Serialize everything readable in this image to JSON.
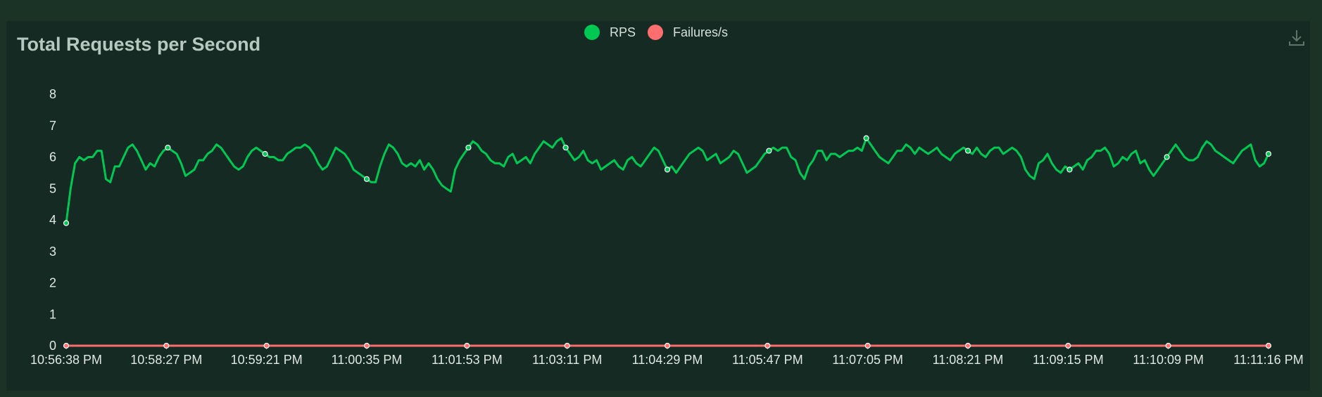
{
  "chart_data": {
    "type": "line",
    "title": "Total Requests per Second",
    "legend": {
      "placement": "top-center",
      "entries": [
        "RPS",
        "Failures/s"
      ]
    },
    "xlabel": "",
    "ylabel": "",
    "ylim": [
      0,
      8
    ],
    "yticks": [
      "0",
      "1",
      "2",
      "3",
      "4",
      "5",
      "6",
      "7",
      "8"
    ],
    "xticks": [
      "10:56:38 PM",
      "10:58:27 PM",
      "10:59:21 PM",
      "11:00:35 PM",
      "11:01:53 PM",
      "11:03:11 PM",
      "11:04:29 PM",
      "11:05:47 PM",
      "11:07:05 PM",
      "11:08:21 PM",
      "11:09:15 PM",
      "11:10:09 PM",
      "11:11:16 PM"
    ],
    "grid": false,
    "series": [
      {
        "name": "RPS",
        "color": "#00c853",
        "values": [
          3.9,
          5.0,
          5.8,
          6.0,
          5.9,
          6.0,
          6.0,
          6.2,
          6.2,
          5.3,
          5.2,
          5.7,
          5.7,
          6.0,
          6.3,
          6.4,
          6.2,
          5.9,
          5.6,
          5.8,
          5.7,
          6.0,
          6.2,
          6.3,
          6.2,
          6.1,
          5.8,
          5.4,
          5.5,
          5.6,
          5.9,
          5.9,
          6.1,
          6.2,
          6.4,
          6.3,
          6.1,
          5.9,
          5.7,
          5.6,
          5.7,
          6.0,
          6.2,
          6.3,
          6.2,
          6.1,
          6.0,
          6.0,
          5.9,
          5.9,
          6.1,
          6.2,
          6.3,
          6.3,
          6.4,
          6.3,
          6.1,
          5.8,
          5.6,
          5.7,
          6.0,
          6.3,
          6.2,
          6.1,
          5.9,
          5.6,
          5.5,
          5.4,
          5.3,
          5.2,
          5.2,
          5.7,
          6.1,
          6.4,
          6.3,
          6.1,
          5.8,
          5.7,
          5.8,
          5.7,
          5.9,
          5.6,
          5.8,
          5.6,
          5.3,
          5.1,
          5.0,
          4.9,
          5.6,
          5.9,
          6.1,
          6.3,
          6.5,
          6.4,
          6.2,
          6.1,
          5.9,
          5.8,
          5.8,
          5.7,
          6.0,
          6.1,
          5.8,
          5.9,
          6.0,
          5.8,
          6.1,
          6.3,
          6.5,
          6.4,
          6.3,
          6.5,
          6.6,
          6.3,
          6.1,
          5.9,
          6.0,
          6.2,
          5.9,
          5.8,
          5.9,
          5.6,
          5.7,
          5.8,
          5.9,
          5.7,
          5.6,
          5.9,
          6.0,
          5.8,
          5.7,
          5.9,
          6.1,
          6.3,
          6.2,
          5.9,
          5.6,
          5.7,
          5.5,
          5.7,
          5.9,
          6.1,
          6.2,
          6.3,
          6.2,
          5.9,
          6.0,
          6.1,
          5.8,
          5.9,
          6.0,
          6.2,
          6.1,
          5.8,
          5.5,
          5.6,
          5.7,
          5.9,
          6.1,
          6.2,
          6.3,
          6.2,
          6.3,
          6.3,
          6.0,
          5.9,
          5.5,
          5.3,
          5.7,
          5.9,
          6.2,
          6.2,
          5.9,
          6.1,
          6.1,
          6.0,
          6.1,
          6.2,
          6.2,
          6.3,
          6.2,
          6.6,
          6.4,
          6.2,
          6.0,
          5.9,
          5.8,
          6.0,
          6.2,
          6.2,
          6.4,
          6.3,
          6.1,
          6.3,
          6.2,
          6.1,
          6.2,
          6.3,
          6.1,
          6.0,
          5.9,
          6.1,
          6.2,
          6.3,
          6.2,
          6.1,
          6.3,
          6.1,
          6.0,
          6.2,
          6.3,
          6.3,
          6.1,
          6.2,
          6.3,
          6.2,
          6.0,
          5.6,
          5.4,
          5.3,
          5.8,
          5.9,
          6.1,
          5.8,
          5.6,
          5.5,
          5.7,
          5.6,
          5.7,
          5.8,
          5.6,
          5.9,
          6.0,
          6.2,
          6.2,
          6.3,
          6.1,
          5.7,
          5.8,
          6.0,
          5.9,
          6.1,
          6.2,
          5.8,
          5.9,
          5.6,
          5.4,
          5.6,
          5.8,
          6.0,
          6.2,
          6.4,
          6.2,
          6.0,
          5.9,
          5.9,
          6.0,
          6.3,
          6.5,
          6.4,
          6.2,
          6.1,
          6.0,
          5.9,
          5.8,
          6.0,
          6.2,
          6.3,
          6.4,
          5.9,
          5.7,
          5.8,
          6.1
        ]
      },
      {
        "name": "Failures/s",
        "color": "#ff6e6e",
        "values": [
          0,
          0,
          0,
          0,
          0,
          0,
          0,
          0,
          0,
          0,
          0,
          0,
          0,
          0,
          0,
          0,
          0,
          0,
          0,
          0,
          0,
          0,
          0,
          0,
          0,
          0,
          0,
          0,
          0,
          0,
          0,
          0,
          0,
          0,
          0,
          0,
          0,
          0,
          0,
          0,
          0,
          0,
          0,
          0,
          0,
          0,
          0,
          0,
          0,
          0,
          0,
          0,
          0,
          0,
          0,
          0,
          0,
          0,
          0,
          0,
          0,
          0,
          0,
          0,
          0,
          0,
          0,
          0,
          0,
          0,
          0,
          0,
          0,
          0,
          0,
          0,
          0,
          0,
          0,
          0,
          0,
          0,
          0,
          0,
          0,
          0,
          0,
          0,
          0,
          0,
          0,
          0,
          0,
          0,
          0,
          0,
          0,
          0,
          0,
          0,
          0,
          0,
          0,
          0,
          0,
          0,
          0,
          0,
          0,
          0,
          0,
          0,
          0,
          0,
          0,
          0,
          0,
          0,
          0,
          0,
          0,
          0,
          0,
          0,
          0,
          0,
          0,
          0,
          0,
          0,
          0,
          0,
          0,
          0,
          0,
          0,
          0,
          0,
          0,
          0,
          0,
          0,
          0,
          0,
          0,
          0,
          0,
          0,
          0,
          0,
          0,
          0,
          0,
          0,
          0,
          0,
          0,
          0,
          0,
          0,
          0,
          0,
          0,
          0,
          0,
          0,
          0,
          0,
          0,
          0,
          0,
          0,
          0,
          0,
          0,
          0,
          0,
          0,
          0,
          0,
          0,
          0,
          0,
          0,
          0,
          0,
          0,
          0,
          0,
          0,
          0,
          0,
          0,
          0,
          0,
          0,
          0,
          0,
          0,
          0,
          0,
          0,
          0,
          0,
          0,
          0,
          0,
          0,
          0,
          0,
          0,
          0,
          0,
          0,
          0,
          0,
          0,
          0,
          0,
          0,
          0,
          0,
          0,
          0,
          0,
          0,
          0,
          0,
          0,
          0,
          0,
          0,
          0,
          0,
          0,
          0,
          0,
          0,
          0,
          0,
          0,
          0,
          0,
          0,
          0,
          0,
          0,
          0,
          0,
          0,
          0,
          0,
          0,
          0,
          0,
          0,
          0,
          0,
          0,
          0,
          0,
          0,
          0,
          0,
          0
        ]
      }
    ]
  },
  "icons": {
    "download": "download-icon"
  },
  "colors": {
    "background": "#1b3227",
    "panel": "#142a22",
    "title": "#b7c8c0",
    "axis_text": "#e1e8e4"
  }
}
